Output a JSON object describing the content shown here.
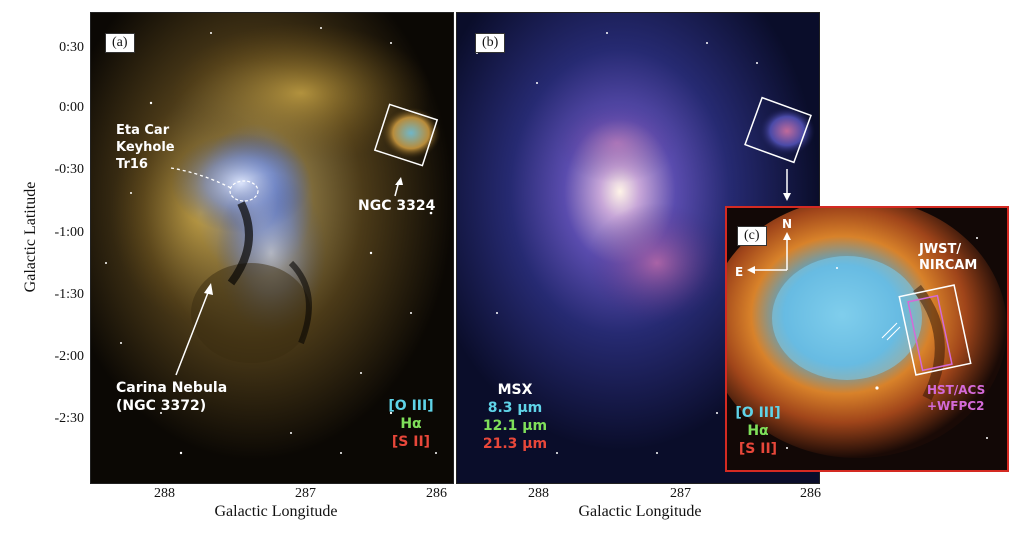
{
  "axes": {
    "ylabel": "Galactic Latitude",
    "xlabel": "Galactic Longitude",
    "yticks": [
      "0:30",
      "0:00",
      "-0:30",
      "-1:00",
      "-1:30",
      "-2:00",
      "-2:30"
    ],
    "xticks_a": [
      "288",
      "287",
      "286"
    ],
    "xticks_b": [
      "288",
      "287",
      "286"
    ]
  },
  "panel_a": {
    "letter": "(a)",
    "labels": {
      "eta_car": "Eta Car",
      "keyhole": "Keyhole",
      "tr16": "Tr16",
      "ngc3324": "NGC 3324",
      "carina_1": "Carina Nebula",
      "carina_2": "(NGC 3372)"
    },
    "legend": [
      {
        "text": "[O III]",
        "color": "#5fd3e8"
      },
      {
        "text": "Hα",
        "color": "#7fe05a"
      },
      {
        "text": "[S II]",
        "color": "#e8473a"
      }
    ]
  },
  "panel_b": {
    "letter": "(b)",
    "legend_title": "MSX",
    "legend": [
      {
        "text": "8.3 μm",
        "color": "#5fd3e8"
      },
      {
        "text": "12.1 μm",
        "color": "#7fe05a"
      },
      {
        "text": "21.3 μm",
        "color": "#e8473a"
      }
    ]
  },
  "panel_c": {
    "letter": "(c)",
    "compass_n": "N",
    "compass_e": "E",
    "jwst_1": "JWST/",
    "jwst_2": "NIRCAM",
    "hst_1": "HST/ACS",
    "hst_2": "+WFPC2",
    "legend": [
      {
        "text": "[O III]",
        "color": "#5fd3e8"
      },
      {
        "text": "Hα",
        "color": "#7fe05a"
      },
      {
        "text": "[S II]",
        "color": "#e8473a"
      }
    ],
    "border_color": "#d42a22"
  }
}
